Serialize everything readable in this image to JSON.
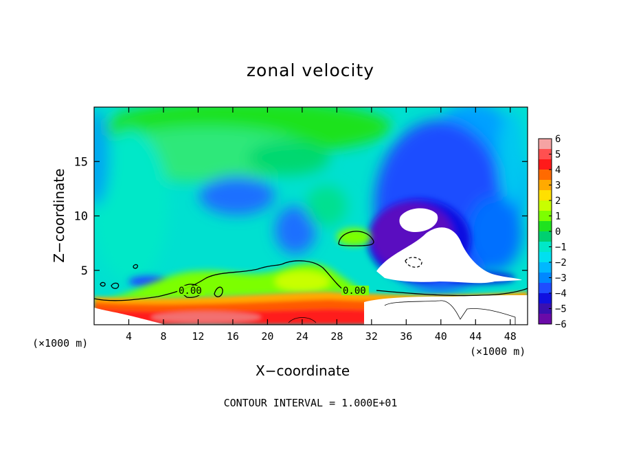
{
  "chart_data": {
    "type": "heatmap",
    "title": "zonal velocity",
    "xlabel": "X−coordinate",
    "ylabel": "Z−coordinate",
    "x_unit_left": "(×1000 m)",
    "x_unit_right": "(×1000 m)",
    "xlim": [
      0,
      50
    ],
    "ylim": [
      0,
      20
    ],
    "x_ticks": [
      4,
      8,
      12,
      16,
      20,
      24,
      28,
      32,
      36,
      40,
      44,
      48
    ],
    "y_ticks": [
      5,
      10,
      15
    ],
    "colorbar": {
      "ticks": [
        "6",
        "5",
        "4",
        "3",
        "2",
        "1",
        "0",
        "−1",
        "−2",
        "−3",
        "−4",
        "−5",
        "−6"
      ],
      "range": [
        -6,
        6
      ],
      "colors": [
        "#f5a3a3",
        "#ff5050",
        "#ff1a1a",
        "#ff6a00",
        "#ffaa00",
        "#ffe000",
        "#c8ff00",
        "#7cff00",
        "#1fe21f",
        "#00d070",
        "#00e8c8",
        "#00e0f0",
        "#00b8ff",
        "#0088ff",
        "#1f4dff",
        "#1010e0",
        "#3a10b0",
        "#6a0aa8"
      ]
    },
    "contour_labels": [
      "0.00",
      "0.00"
    ],
    "footer": "CONTOUR INTERVAL = 1.000E+01"
  }
}
